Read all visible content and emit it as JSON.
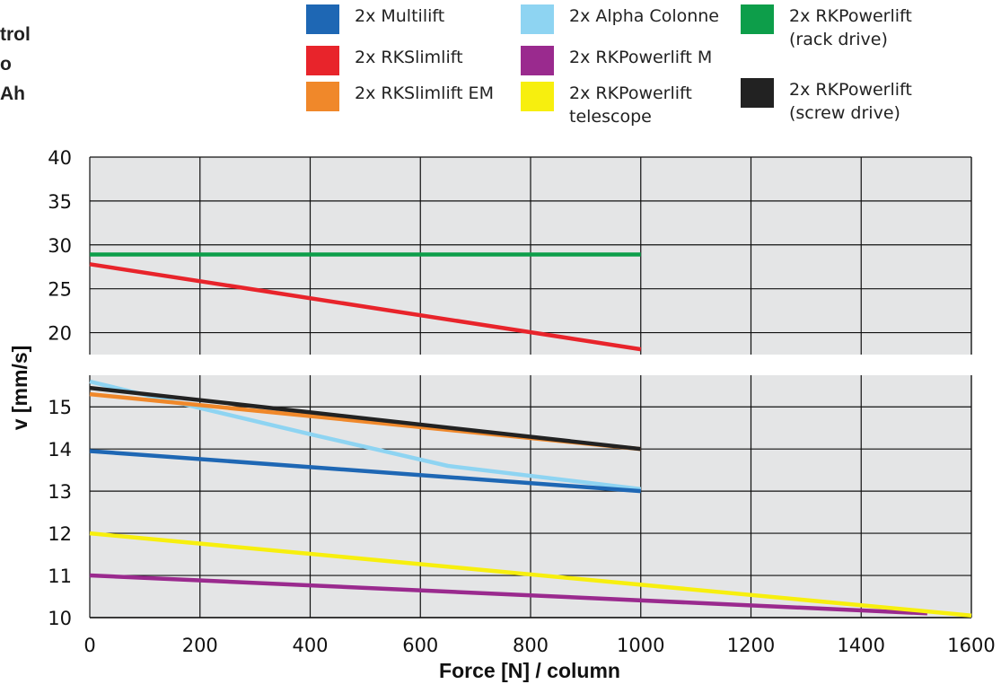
{
  "page_fragment": [
    "trol",
    "o",
    "Ah"
  ],
  "chart_data": {
    "type": "line",
    "xlabel": "Force [N] / column",
    "ylabel": "v [mm/s]",
    "xlim": [
      0,
      1600
    ],
    "x_ticks": [
      "0",
      "200",
      "400",
      "600",
      "800",
      "1000",
      "1200",
      "1400",
      "1600"
    ],
    "y_ticks_upper": [
      "20",
      "25",
      "30",
      "35",
      "40"
    ],
    "y_ticks_lower": [
      "10",
      "11",
      "12",
      "13",
      "14",
      "15"
    ],
    "y_axis": "broken",
    "ylim_lower": [
      10,
      15.75
    ],
    "ylim_upper": [
      17.5,
      40
    ],
    "grid": true,
    "legend_position": "top",
    "series": [
      {
        "name": "2x Multilift",
        "color": "#1e67b4",
        "x": [
          0,
          1000
        ],
        "y": [
          13.95,
          13.0
        ]
      },
      {
        "name": "2x RKSlimlift",
        "color": "#e8242b",
        "x": [
          0,
          1000
        ],
        "y": [
          27.8,
          18.1
        ]
      },
      {
        "name": "2x RKSlimlift EM",
        "color": "#f0882a",
        "x": [
          0,
          1000
        ],
        "y": [
          15.3,
          14.0
        ]
      },
      {
        "name": "2x Alpha Colonne",
        "color": "#8ed4f2",
        "x": [
          0,
          200,
          400,
          650,
          1000
        ],
        "y": [
          15.6,
          14.97,
          14.35,
          13.6,
          13.05
        ]
      },
      {
        "name": "2x RKPowerlift M",
        "color": "#9a2a8e",
        "x": [
          0,
          1520
        ],
        "y": [
          11.0,
          10.1
        ]
      },
      {
        "name": "2x RKPowerlift\ntelescope",
        "color": "#f7ef0e",
        "x": [
          0,
          1600
        ],
        "y": [
          12.0,
          10.05
        ]
      },
      {
        "name": "2x RKPowerlift\n(rack drive)",
        "color": "#0d9e4a",
        "x": [
          0,
          1000
        ],
        "y": [
          28.9,
          28.9
        ]
      },
      {
        "name": "2x RKPowerlift\n(screw drive)",
        "color": "#222222",
        "x": [
          0,
          1000
        ],
        "y": [
          15.45,
          14.0
        ]
      }
    ]
  }
}
